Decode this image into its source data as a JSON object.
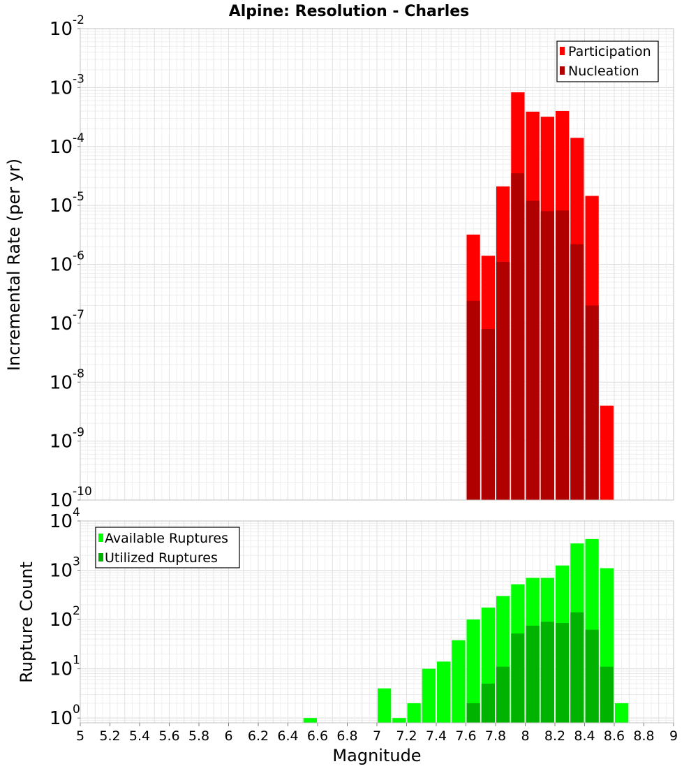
{
  "colors": {
    "participation": "#ff0000",
    "nucleation": "#b00000",
    "available": "#00ff00",
    "utilized": "#00b300",
    "grid": "#e6e6e6",
    "frame": "#c0c0c0",
    "background": "#ffffff"
  },
  "chart_data": {
    "type": "bar",
    "title": "Alpine: Resolution - Charles",
    "xlabel": "Magnitude",
    "xlim": [
      5,
      9
    ],
    "x_tick_labels": [
      "5",
      "5.2",
      "5.4",
      "5.6",
      "5.8",
      "6",
      "6.2",
      "6.4",
      "6.6",
      "6.8",
      "7",
      "7.2",
      "7.4",
      "7.6",
      "7.8",
      "8",
      "8.2",
      "8.4",
      "8.6",
      "8.8",
      "9"
    ],
    "bin_width": 0.1,
    "grid": true,
    "panels": [
      {
        "ylabel": "Incremental Rate (per yr)",
        "yscale": "log",
        "ylim": [
          1e-10,
          0.01
        ],
        "y_tick_labels": [
          {
            "base": "10",
            "exp": "-10"
          },
          {
            "base": "10",
            "exp": "-9"
          },
          {
            "base": "10",
            "exp": "-8"
          },
          {
            "base": "10",
            "exp": "-7"
          },
          {
            "base": "10",
            "exp": "-6"
          },
          {
            "base": "10",
            "exp": "-5"
          },
          {
            "base": "10",
            "exp": "-4"
          },
          {
            "base": "10",
            "exp": "-3"
          },
          {
            "base": "10",
            "exp": "-2"
          }
        ],
        "legend_position": "top-right",
        "series": [
          {
            "name": "Participation",
            "color": "#ff0000",
            "x": [
              7.65,
              7.75,
              7.85,
              7.95,
              8.05,
              8.15,
              8.25,
              8.35,
              8.45,
              8.55
            ],
            "values": [
              3.2e-06,
              1.4e-06,
              2.1e-05,
              0.00083,
              0.00039,
              0.00032,
              0.0004,
              0.00014,
              1.45e-05,
              4e-09
            ]
          },
          {
            "name": "Nucleation",
            "color": "#b00000",
            "x": [
              7.65,
              7.75,
              7.85,
              7.95,
              8.05,
              8.15,
              8.25,
              8.35,
              8.45,
              8.55
            ],
            "values": [
              2.4e-07,
              8e-08,
              1.1e-06,
              3.5e-05,
              1.2e-05,
              8e-06,
              8.2e-06,
              2.2e-06,
              2e-07,
              1e-10
            ]
          }
        ]
      },
      {
        "ylabel": "Rupture Count",
        "yscale": "log",
        "ylim": [
          0.8,
          10000
        ],
        "y_tick_labels": [
          {
            "base": "10",
            "exp": "0"
          },
          {
            "base": "10",
            "exp": "1"
          },
          {
            "base": "10",
            "exp": "2"
          },
          {
            "base": "10",
            "exp": "3"
          },
          {
            "base": "10",
            "exp": "4"
          }
        ],
        "legend_position": "top-left",
        "series": [
          {
            "name": "Available Ruptures",
            "color": "#00ff00",
            "x": [
              6.55,
              7.05,
              7.15,
              7.25,
              7.35,
              7.45,
              7.55,
              7.65,
              7.75,
              7.85,
              7.95,
              8.05,
              8.15,
              8.25,
              8.35,
              8.45,
              8.55,
              8.65
            ],
            "values": [
              1,
              4,
              1,
              2,
              10,
              14,
              38,
              100,
              175,
              300,
              520,
              700,
              700,
              1250,
              3500,
              4300,
              1100,
              2
            ]
          },
          {
            "name": "Utilized Ruptures",
            "color": "#00b300",
            "x": [
              7.65,
              7.75,
              7.85,
              7.95,
              8.05,
              8.15,
              8.25,
              8.35,
              8.45,
              8.55
            ],
            "values": [
              2,
              5,
              11,
              52,
              75,
              90,
              85,
              140,
              62,
              11
            ]
          }
        ]
      }
    ]
  }
}
